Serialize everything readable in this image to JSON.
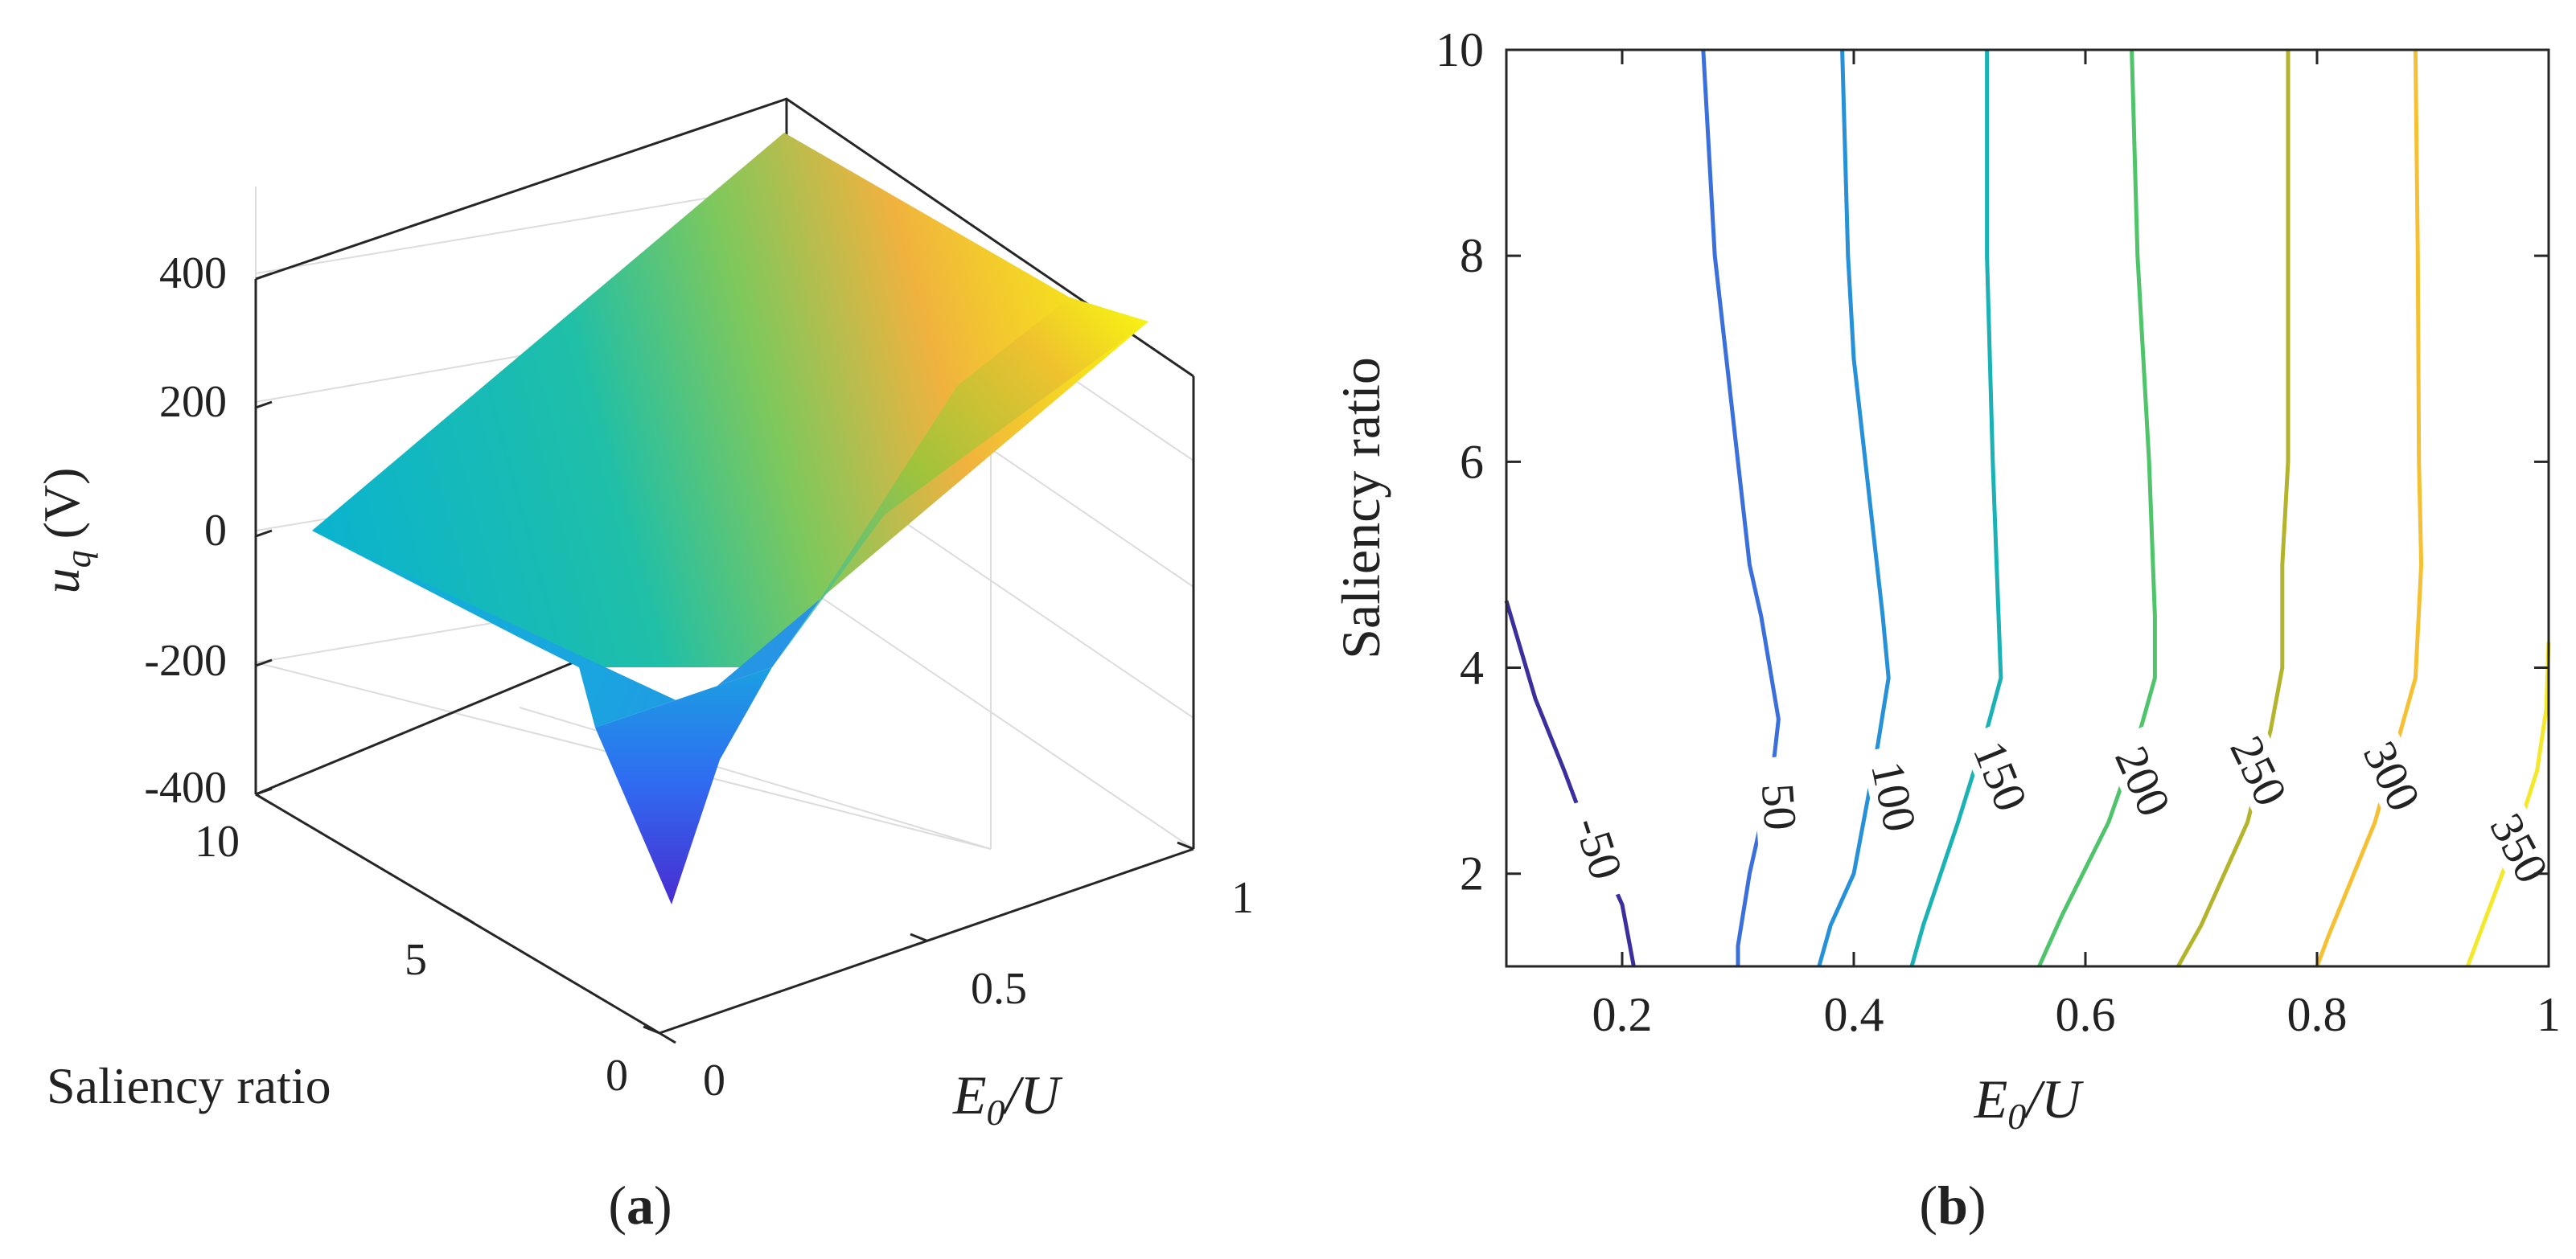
{
  "figure": {
    "panel_a_caption": "a",
    "panel_b_caption": "b"
  },
  "chart_data": [
    {
      "type": "surface3d",
      "panel": "a",
      "xlabel": "E",
      "xlabel_sub": "0",
      "xlabel_tail": "/U",
      "ylabel": "Saliency ratio",
      "zlabel": "u",
      "zlabel_sub": "q",
      "zlabel_unit": "(V)",
      "x_ticks": [
        "0",
        "0.5",
        "1"
      ],
      "y_ticks": [
        "0",
        "5",
        "10"
      ],
      "z_ticks": [
        "-400",
        "-200",
        "0",
        "200",
        "400"
      ],
      "xlim": [
        0,
        1
      ],
      "ylim": [
        0,
        10
      ],
      "zlim": [
        -400,
        400
      ],
      "surface_model": "u_q approximately linear in E0/U, with a sharp drop near low saliency ratio and mid E0/U",
      "surface_corners": {
        "x0_y10": 0,
        "x1_y10": 390,
        "x1_y1": 355,
        "dip_point": {
          "x": 0.5,
          "y": 1,
          "z": -395
        }
      },
      "colormap": [
        "#3e26a8",
        "#2f6cf2",
        "#1aa4e0",
        "#06b6cf",
        "#38c482",
        "#a5be33",
        "#fbb33e",
        "#f9fb0e"
      ]
    },
    {
      "type": "contour",
      "panel": "b",
      "xlabel": "E",
      "xlabel_sub": "0",
      "xlabel_tail": "/U",
      "ylabel": "Saliency ratio",
      "xlim": [
        0.1,
        1
      ],
      "ylim": [
        1.1,
        10
      ],
      "x_ticks": [
        "0.2",
        "0.4",
        "0.6",
        "0.8",
        "1"
      ],
      "y_ticks": [
        "2",
        "4",
        "6",
        "8",
        "10"
      ],
      "levels": [
        {
          "level": -50,
          "label": "-50",
          "color": "#3a2f9c",
          "points": [
            [
              0.1,
              4.65
            ],
            [
              0.125,
              3.7
            ],
            [
              0.15,
              3.0
            ],
            [
              0.16,
              2.7
            ],
            [
              0.2,
              1.7
            ],
            [
              0.21,
              1.1
            ]
          ],
          "label_at": [
            0.18,
            2.25
          ],
          "label_angle": 72
        },
        {
          "level": 50,
          "label": "50",
          "color": "#3a6fdc",
          "points": [
            [
              0.27,
              10
            ],
            [
              0.28,
              8.0
            ],
            [
              0.29,
              7.0
            ],
            [
              0.31,
              5.0
            ],
            [
              0.32,
              4.5
            ],
            [
              0.335,
              3.5
            ],
            [
              0.33,
              3.0
            ],
            [
              0.31,
              2.0
            ],
            [
              0.3,
              1.3
            ],
            [
              0.3,
              1.1
            ]
          ],
          "label_at": [
            0.336,
            2.65
          ],
          "label_angle": 86
        },
        {
          "level": 100,
          "label": "100",
          "color": "#2690d8",
          "points": [
            [
              0.39,
              10
            ],
            [
              0.395,
              8.0
            ],
            [
              0.4,
              7.0
            ],
            [
              0.41,
              6.0
            ],
            [
              0.425,
              4.5
            ],
            [
              0.43,
              3.9
            ],
            [
              0.42,
              3.2
            ],
            [
              0.4,
              2.0
            ],
            [
              0.38,
              1.5
            ],
            [
              0.37,
              1.1
            ]
          ],
          "label_at": [
            0.435,
            2.75
          ],
          "label_angle": 78
        },
        {
          "level": 150,
          "label": "150",
          "color": "#1ab2b4",
          "points": [
            [
              0.515,
              10
            ],
            [
              0.515,
              8.0
            ],
            [
              0.52,
              6.0
            ],
            [
              0.525,
              4.5
            ],
            [
              0.527,
              3.9
            ],
            [
              0.515,
              3.4
            ],
            [
              0.49,
              2.5
            ],
            [
              0.46,
              1.5
            ],
            [
              0.45,
              1.1
            ]
          ],
          "label_at": [
            0.527,
            2.95
          ],
          "label_angle": 68
        },
        {
          "level": 200,
          "label": "200",
          "color": "#4fc46a",
          "points": [
            [
              0.64,
              10
            ],
            [
              0.645,
              8.0
            ],
            [
              0.655,
              6.0
            ],
            [
              0.66,
              4.5
            ],
            [
              0.66,
              3.9
            ],
            [
              0.645,
              3.3
            ],
            [
              0.62,
              2.5
            ],
            [
              0.58,
              1.6
            ],
            [
              0.56,
              1.1
            ]
          ],
          "label_at": [
            0.65,
            2.9
          ],
          "label_angle": 66
        },
        {
          "level": 250,
          "label": "250",
          "color": "#b4b42c",
          "points": [
            [
              0.775,
              10
            ],
            [
              0.775,
              8.0
            ],
            [
              0.775,
              6.0
            ],
            [
              0.77,
              5.0
            ],
            [
              0.77,
              4.0
            ],
            [
              0.76,
              3.4
            ],
            [
              0.74,
              2.5
            ],
            [
              0.7,
              1.5
            ],
            [
              0.68,
              1.1
            ]
          ],
          "label_at": [
            0.75,
            3.0
          ],
          "label_angle": 64
        },
        {
          "level": 300,
          "label": "300",
          "color": "#f5c033",
          "points": [
            [
              0.885,
              10
            ],
            [
              0.887,
              8.0
            ],
            [
              0.888,
              6.0
            ],
            [
              0.89,
              5.0
            ],
            [
              0.885,
              3.9
            ],
            [
              0.87,
              3.3
            ],
            [
              0.85,
              2.5
            ],
            [
              0.81,
              1.4
            ],
            [
              0.8,
              1.1
            ]
          ],
          "label_at": [
            0.865,
            2.95
          ],
          "label_angle": 64
        },
        {
          "level": 350,
          "label": "350",
          "color": "#f4e82a",
          "points": [
            [
              1.0,
              4.25
            ],
            [
              0.998,
              3.6
            ],
            [
              0.99,
              3.0
            ],
            [
              0.97,
              2.3
            ],
            [
              0.94,
              1.4
            ],
            [
              0.93,
              1.1
            ]
          ],
          "label_at": [
            0.975,
            2.25
          ],
          "label_angle": 62
        }
      ]
    }
  ]
}
